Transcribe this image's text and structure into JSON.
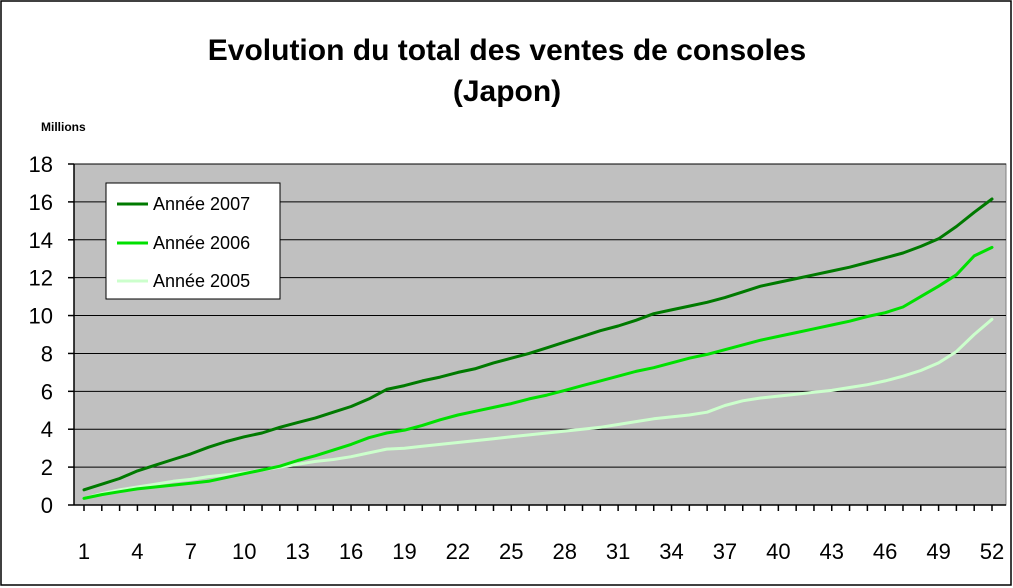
{
  "chart_data": {
    "type": "line",
    "title": [
      "Evolution du total des ventes de consoles",
      "(Japon)"
    ],
    "unit_label": "Millions",
    "xlabel": "",
    "ylabel": "",
    "x": [
      1,
      2,
      3,
      4,
      5,
      6,
      7,
      8,
      9,
      10,
      11,
      12,
      13,
      14,
      15,
      16,
      17,
      18,
      19,
      20,
      21,
      22,
      23,
      24,
      25,
      26,
      27,
      28,
      29,
      30,
      31,
      32,
      33,
      34,
      35,
      36,
      37,
      38,
      39,
      40,
      41,
      42,
      43,
      44,
      45,
      46,
      47,
      48,
      49,
      50,
      51,
      52
    ],
    "x_tick_labels": [
      "1",
      "4",
      "7",
      "10",
      "13",
      "16",
      "19",
      "22",
      "25",
      "28",
      "31",
      "34",
      "37",
      "40",
      "43",
      "46",
      "49",
      "52"
    ],
    "y_ticks": [
      0,
      2,
      4,
      6,
      8,
      10,
      12,
      14,
      16,
      18
    ],
    "ylim": [
      0,
      18
    ],
    "xlim": [
      1,
      52
    ],
    "grid": true,
    "plot_background": "#c0c0c0",
    "legend_position": "top-left",
    "series": [
      {
        "name": "Année 2007",
        "color": "#007a00",
        "values": [
          0.8,
          1.1,
          1.4,
          1.8,
          2.1,
          2.4,
          2.7,
          3.05,
          3.35,
          3.6,
          3.8,
          4.1,
          4.35,
          4.6,
          4.9,
          5.2,
          5.6,
          6.1,
          6.3,
          6.55,
          6.75,
          7.0,
          7.2,
          7.5,
          7.75,
          8.0,
          8.3,
          8.6,
          8.9,
          9.2,
          9.45,
          9.75,
          10.1,
          10.3,
          10.5,
          10.7,
          10.95,
          11.25,
          11.55,
          11.75,
          11.95,
          12.15,
          12.35,
          12.55,
          12.8,
          13.05,
          13.3,
          13.65,
          14.05,
          14.7,
          15.45,
          16.15
        ]
      },
      {
        "name": "Année 2006",
        "color": "#00e000",
        "values": [
          0.35,
          0.55,
          0.7,
          0.85,
          0.95,
          1.05,
          1.15,
          1.25,
          1.45,
          1.65,
          1.85,
          2.05,
          2.35,
          2.6,
          2.9,
          3.2,
          3.55,
          3.8,
          3.95,
          4.2,
          4.5,
          4.75,
          4.95,
          5.15,
          5.35,
          5.6,
          5.8,
          6.05,
          6.3,
          6.55,
          6.8,
          7.05,
          7.25,
          7.5,
          7.75,
          7.95,
          8.2,
          8.45,
          8.7,
          8.9,
          9.1,
          9.3,
          9.5,
          9.7,
          9.95,
          10.15,
          10.45,
          11.0,
          11.55,
          12.15,
          13.15,
          13.6
        ]
      },
      {
        "name": "Année 2005",
        "color": "#ccffcc",
        "values": [
          0.35,
          0.6,
          0.8,
          0.95,
          1.1,
          1.25,
          1.35,
          1.5,
          1.6,
          1.7,
          1.85,
          2.0,
          2.15,
          2.3,
          2.4,
          2.55,
          2.75,
          2.95,
          3.0,
          3.1,
          3.2,
          3.3,
          3.4,
          3.5,
          3.6,
          3.7,
          3.8,
          3.9,
          4.0,
          4.1,
          4.25,
          4.4,
          4.55,
          4.65,
          4.75,
          4.9,
          5.25,
          5.5,
          5.65,
          5.75,
          5.85,
          5.95,
          6.05,
          6.2,
          6.35,
          6.55,
          6.8,
          7.1,
          7.5,
          8.1,
          9.0,
          9.8
        ]
      }
    ]
  }
}
